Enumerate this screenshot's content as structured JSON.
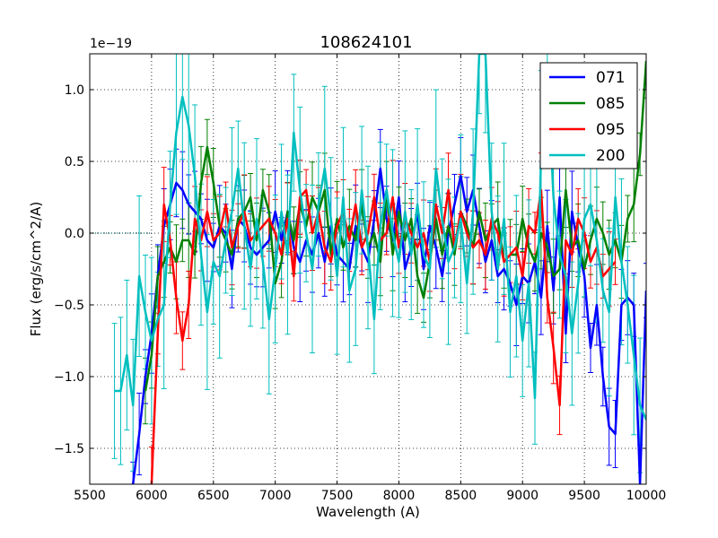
{
  "chart_data": {
    "type": "line",
    "title": "108624101",
    "xlabel": "Wavelength (A)",
    "ylabel": "Flux (erg/s/cm^2/A)",
    "offset_label": "1e−19",
    "xlim": [
      5500,
      10000
    ],
    "ylim": [
      -1.75,
      1.25
    ],
    "grid": true,
    "legend_position": "top-right",
    "x_ticks": [
      5500,
      6000,
      6500,
      7000,
      7500,
      8000,
      8500,
      9000,
      9500,
      10000
    ],
    "x_tick_labels": [
      "5500",
      "6000",
      "6500",
      "7000",
      "7500",
      "8000",
      "8500",
      "9000",
      "9500",
      "10000"
    ],
    "y_ticks": [
      -1.5,
      -1.0,
      -0.5,
      0.0,
      0.5,
      1.0
    ],
    "y_tick_labels": [
      "−1.5",
      "−1.0",
      "−0.5",
      "0.0",
      "0.5",
      "1.0"
    ],
    "series": [
      {
        "name": "071",
        "color": "#0000ff",
        "x": [
          5850,
          5900,
          5950,
          6000,
          6050,
          6100,
          6150,
          6200,
          6250,
          6300,
          6350,
          6400,
          6450,
          6500,
          6550,
          6600,
          6650,
          6700,
          6750,
          6800,
          6850,
          6900,
          6950,
          7000,
          7050,
          7100,
          7150,
          7200,
          7250,
          7300,
          7350,
          7400,
          7450,
          7500,
          7550,
          7600,
          7650,
          7700,
          7750,
          7800,
          7850,
          7900,
          7950,
          8000,
          8050,
          8100,
          8150,
          8200,
          8250,
          8300,
          8350,
          8400,
          8450,
          8500,
          8550,
          8600,
          8650,
          8700,
          8750,
          8800,
          8850,
          8900,
          8950,
          9000,
          9050,
          9100,
          9150,
          9200,
          9250,
          9300,
          9350,
          9400,
          9450,
          9500,
          9550,
          9600,
          9650,
          9700,
          9750,
          9800,
          9850,
          9900,
          9950,
          10000
        ],
        "values": [
          -1.75,
          -1.4,
          -1.0,
          -0.7,
          -0.3,
          0.05,
          0.2,
          0.35,
          0.3,
          0.2,
          0.15,
          0.1,
          -0.05,
          -0.1,
          0.05,
          0.0,
          -0.25,
          0.1,
          0.05,
          -0.1,
          -0.15,
          -0.1,
          -0.05,
          0.15,
          -0.05,
          0.15,
          -0.1,
          -0.2,
          -0.05,
          -0.15,
          0.0,
          -0.2,
          0.05,
          -0.15,
          -0.2,
          -0.25,
          0.05,
          -0.1,
          -0.2,
          0.1,
          0.45,
          0.1,
          -0.05,
          0.25,
          -0.25,
          -0.1,
          0.15,
          -0.25,
          0.05,
          -0.1,
          -0.3,
          0.0,
          0.2,
          0.4,
          0.15,
          0.3,
          0.05,
          -0.2,
          -0.05,
          -0.3,
          -0.25,
          -0.35,
          -0.5,
          -0.3,
          -0.35,
          -0.2,
          -0.45,
          0.05,
          -0.4,
          0.25,
          -0.7,
          0.15,
          -0.1,
          -0.3,
          -0.8,
          -0.5,
          -1.0,
          -1.35,
          -1.4,
          -0.5,
          -0.45,
          -0.5,
          -1.75,
          -0.4
        ]
      },
      {
        "name": "085",
        "color": "#008000",
        "x": [
          5950,
          6000,
          6050,
          6100,
          6150,
          6200,
          6250,
          6300,
          6350,
          6400,
          6450,
          6500,
          6550,
          6600,
          6650,
          6700,
          6750,
          6800,
          6850,
          6900,
          6950,
          7000,
          7050,
          7100,
          7150,
          7200,
          7250,
          7300,
          7350,
          7400,
          7450,
          7500,
          7550,
          7600,
          7650,
          7700,
          7750,
          7800,
          7850,
          7900,
          7950,
          8000,
          8050,
          8100,
          8150,
          8200,
          8250,
          8300,
          8350,
          8400,
          8450,
          8500,
          8550,
          8600,
          8650,
          8700,
          8750,
          8800,
          8850,
          8900,
          8950,
          9000,
          9050,
          9100,
          9150,
          9200,
          9250,
          9300,
          9350,
          9400,
          9450,
          9500,
          9550,
          9600,
          9650,
          9700,
          9750,
          9800,
          9850,
          9900,
          9950,
          10000
        ],
        "values": [
          -1.1,
          -0.85,
          -0.3,
          -0.2,
          -0.1,
          -0.2,
          -0.05,
          -0.05,
          -0.15,
          0.35,
          0.6,
          0.35,
          0.05,
          -0.05,
          -0.15,
          0.1,
          0.15,
          0.25,
          -0.05,
          0.3,
          0.15,
          -0.35,
          -0.2,
          0.15,
          -0.05,
          0.2,
          0.05,
          0.25,
          0.15,
          0.3,
          -0.15,
          0.1,
          -0.1,
          0.05,
          -0.05,
          0.2,
          -0.1,
          0.0,
          -0.2,
          0.3,
          -0.15,
          0.15,
          -0.05,
          0.1,
          -0.3,
          -0.45,
          -0.2,
          0.1,
          -0.15,
          0.05,
          -0.15,
          0.15,
          0.05,
          -0.1,
          0.15,
          -0.05,
          0.05,
          0.1,
          -0.2,
          -0.15,
          -0.15,
          0.1,
          -0.1,
          -0.2,
          0.0,
          -0.1,
          -0.3,
          -0.25,
          0.3,
          -0.1,
          -0.05,
          -0.25,
          -0.05,
          0.1,
          0.0,
          -0.15,
          -0.05,
          -0.2,
          0.1,
          0.2,
          0.55,
          1.2
        ]
      },
      {
        "name": "095",
        "color": "#ff0000",
        "x": [
          6000,
          6050,
          6100,
          6150,
          6200,
          6250,
          6300,
          6350,
          6400,
          6450,
          6500,
          6550,
          6600,
          6650,
          6700,
          6750,
          6800,
          6850,
          6900,
          6950,
          7000,
          7050,
          7100,
          7150,
          7200,
          7250,
          7300,
          7350,
          7400,
          7450,
          7500,
          7550,
          7600,
          7650,
          7700,
          7750,
          7800,
          7850,
          7900,
          7950,
          8000,
          8050,
          8100,
          8150,
          8200,
          8250,
          8300,
          8350,
          8400,
          8450,
          8500,
          8550,
          8600,
          8650,
          8700,
          8750,
          8800,
          8850,
          8900,
          8950,
          9000,
          9050,
          9100,
          9150,
          9200,
          9250,
          9300,
          9350,
          9400,
          9450,
          9500,
          9550,
          9600,
          9650,
          9700,
          9750
        ],
        "values": [
          -1.75,
          -0.7,
          0.2,
          -0.05,
          -0.45,
          -0.75,
          -0.5,
          0.1,
          -0.05,
          0.15,
          -0.05,
          0.0,
          0.2,
          -0.1,
          0.05,
          0.15,
          -0.05,
          0.0,
          0.05,
          0.1,
          0.0,
          -0.15,
          0.1,
          -0.3,
          0.25,
          0.3,
          0.0,
          0.15,
          -0.1,
          -0.2,
          0.05,
          0.15,
          -0.05,
          0.2,
          -0.1,
          0.0,
          0.25,
          -0.05,
          0.0,
          0.25,
          -0.1,
          0.1,
          0.0,
          -0.1,
          0.0,
          -0.2,
          0.2,
          0.0,
          0.3,
          -0.1,
          0.15,
          0.0,
          -0.1,
          -0.05,
          -0.15,
          0.1,
          0.0,
          -0.2,
          -0.15,
          -0.1,
          -0.3,
          0.05,
          0.0,
          0.3,
          -0.45,
          -0.8,
          -1.2,
          -0.05,
          -0.15,
          0.1,
          0.0,
          -0.2,
          -0.1,
          -0.3,
          -0.25,
          -0.2
        ]
      },
      {
        "name": "200",
        "color": "#00bfbf",
        "x": [
          5700,
          5750,
          5800,
          5850,
          5900,
          5950,
          6000,
          6050,
          6100,
          6150,
          6200,
          6250,
          6300,
          6350,
          6400,
          6450,
          6500,
          6550,
          6600,
          6650,
          6700,
          6750,
          6800,
          6850,
          6900,
          6950,
          7000,
          7050,
          7100,
          7150,
          7200,
          7250,
          7300,
          7350,
          7400,
          7450,
          7500,
          7550,
          7600,
          7650,
          7700,
          7750,
          7800,
          7850,
          7900,
          7950,
          8000,
          8050,
          8100,
          8150,
          8200,
          8250,
          8300,
          8350,
          8400,
          8450,
          8500,
          8550,
          8600,
          8650,
          8700,
          8750,
          8800,
          8850,
          8900,
          8950,
          9000,
          9050,
          9100,
          9150,
          9200,
          9250,
          9300,
          9350,
          9400,
          9450,
          9500,
          9550,
          9600,
          9650,
          9700,
          9750,
          9800,
          9850,
          9900,
          9950,
          10000
        ],
        "values": [
          -1.1,
          -1.1,
          -0.85,
          -1.2,
          -0.3,
          -0.55,
          -0.75,
          -0.6,
          -0.5,
          0.2,
          0.7,
          0.95,
          0.75,
          0.4,
          -0.15,
          -0.55,
          -0.2,
          -0.3,
          -0.05,
          0.15,
          0.45,
          0.05,
          -0.25,
          0.1,
          -0.2,
          -0.6,
          -0.25,
          0.15,
          -0.15,
          0.7,
          0.3,
          0.0,
          -0.25,
          0.2,
          0.45,
          0.1,
          -0.3,
          0.25,
          -0.4,
          -0.25,
          0.3,
          -0.1,
          -0.6,
          0.05,
          0.3,
          0.0,
          -0.2,
          0.15,
          -0.15,
          0.2,
          -0.15,
          -0.25,
          0.45,
          0.1,
          -0.2,
          -0.1,
          0.1,
          -0.35,
          0.15,
          1.25,
          1.25,
          0.15,
          -0.25,
          0.1,
          -0.55,
          -0.3,
          -0.75,
          -0.35,
          -1.15,
          0.55,
          1.15,
          0.25,
          -0.15,
          -0.3,
          -0.7,
          -0.35,
          0.1,
          0.2,
          -0.05,
          -0.4,
          -0.55,
          0.25,
          -0.2,
          -0.5,
          -0.85,
          -1.2,
          -1.3
        ]
      }
    ]
  }
}
